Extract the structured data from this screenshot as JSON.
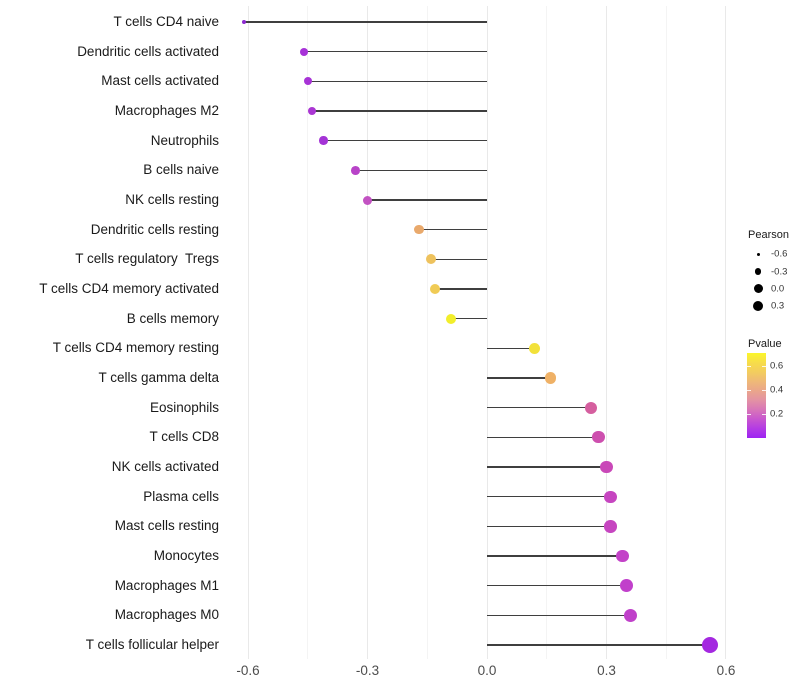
{
  "chart_data": {
    "type": "lollipop",
    "orientation": "horizontal",
    "title": "",
    "xlabel": "",
    "ylabel": "",
    "baseline": 0.0,
    "x_axis": {
      "tick_labels": [
        "-0.6",
        "-0.3",
        "0.0",
        "0.3",
        "0.6"
      ],
      "tick_values": [
        -0.6,
        -0.3,
        0.0,
        0.3,
        0.6
      ],
      "minor_tick_values": [
        -0.45,
        -0.15,
        0.15,
        0.45
      ],
      "xlim": [
        -0.66,
        0.64
      ]
    },
    "rows": [
      {
        "label": "T cells CD4 naive",
        "pearson": -0.61,
        "pvalue_approx": 0.03,
        "pvalue_color": "#8d2bd0",
        "radius": 2.0
      },
      {
        "label": "Dendritic cells activated",
        "pearson": -0.46,
        "pvalue_approx": 0.09,
        "pvalue_color": "#a732d8",
        "radius": 4.0
      },
      {
        "label": "Mast cells activated",
        "pearson": -0.45,
        "pvalue_approx": 0.09,
        "pvalue_color": "#a733d6",
        "radius": 4.0
      },
      {
        "label": "Macrophages M2",
        "pearson": -0.44,
        "pvalue_approx": 0.1,
        "pvalue_color": "#aa36d3",
        "radius": 4.2
      },
      {
        "label": "Neutrophils",
        "pearson": -0.41,
        "pvalue_approx": 0.09,
        "pvalue_color": "#a434d6",
        "radius": 4.2
      },
      {
        "label": "B cells naive",
        "pearson": -0.33,
        "pvalue_approx": 0.15,
        "pvalue_color": "#b843c8",
        "radius": 4.4
      },
      {
        "label": "NK cells resting",
        "pearson": -0.3,
        "pvalue_approx": 0.2,
        "pvalue_color": "#c252c2",
        "radius": 4.5
      },
      {
        "label": "Dendritic cells resting",
        "pearson": -0.17,
        "pvalue_approx": 0.45,
        "pvalue_color": "#e9a96c",
        "radius": 4.8
      },
      {
        "label": "T cells regulatory  Tregs",
        "pearson": -0.14,
        "pvalue_approx": 0.52,
        "pvalue_color": "#eec25d",
        "radius": 5.0
      },
      {
        "label": "T cells CD4 memory activated",
        "pearson": -0.13,
        "pvalue_approx": 0.55,
        "pvalue_color": "#f0cb55",
        "radius": 5.0
      },
      {
        "label": "B cells memory",
        "pearson": -0.09,
        "pvalue_approx": 0.68,
        "pvalue_color": "#f2ee2b",
        "radius": 5.2
      },
      {
        "label": "T cells CD4 memory resting",
        "pearson": 0.12,
        "pvalue_approx": 0.63,
        "pvalue_color": "#f2e13a",
        "radius": 5.5
      },
      {
        "label": "T cells gamma delta",
        "pearson": 0.16,
        "pvalue_approx": 0.48,
        "pvalue_color": "#efb166",
        "radius": 5.6
      },
      {
        "label": "Eosinophils",
        "pearson": 0.26,
        "pvalue_approx": 0.3,
        "pvalue_color": "#d55f9f",
        "radius": 6.0
      },
      {
        "label": "T cells CD8",
        "pearson": 0.28,
        "pvalue_approx": 0.26,
        "pvalue_color": "#cd4fae",
        "radius": 6.1
      },
      {
        "label": "NK cells activated",
        "pearson": 0.3,
        "pvalue_approx": 0.23,
        "pvalue_color": "#c948b8",
        "radius": 6.2
      },
      {
        "label": "Plasma cells",
        "pearson": 0.31,
        "pvalue_approx": 0.22,
        "pvalue_color": "#c645c0",
        "radius": 6.2
      },
      {
        "label": "Mast cells resting",
        "pearson": 0.31,
        "pvalue_approx": 0.22,
        "pvalue_color": "#c645c0",
        "radius": 6.2
      },
      {
        "label": "Monocytes",
        "pearson": 0.34,
        "pvalue_approx": 0.2,
        "pvalue_color": "#c342c8",
        "radius": 6.4
      },
      {
        "label": "Macrophages M1",
        "pearson": 0.35,
        "pvalue_approx": 0.19,
        "pvalue_color": "#c140cb",
        "radius": 6.4
      },
      {
        "label": "Macrophages M0",
        "pearson": 0.36,
        "pvalue_approx": 0.19,
        "pvalue_color": "#c041ca",
        "radius": 6.5
      },
      {
        "label": "T cells follicular helper",
        "pearson": 0.56,
        "pvalue_approx": 0.06,
        "pvalue_color": "#a428e0",
        "radius": 8.3
      }
    ],
    "legend_pearson": {
      "title": "Pearson",
      "dot_color": "#000000",
      "entries": [
        {
          "label": "-0.6",
          "radius": 1.5
        },
        {
          "label": "-0.3",
          "radius": 3.3
        },
        {
          "label": "0.0",
          "radius": 4.5
        },
        {
          "label": "0.3",
          "radius": 5.0
        }
      ]
    },
    "legend_pvalue": {
      "title": "Pvalue",
      "tick_labels": [
        "0.6",
        "0.4",
        "0.2"
      ],
      "tick_values": [
        0.6,
        0.4,
        0.2
      ],
      "range": [
        0,
        0.71
      ],
      "gradient_stops_bottom_to_top": [
        "#9d23f2",
        "#b33be4",
        "#c856cf",
        "#d876b8",
        "#e392a4",
        "#eaa68b",
        "#efb977",
        "#f3cd5e",
        "#f7dd4a",
        "#fbf62a"
      ]
    },
    "stem_color": "#3f3f3f",
    "background_color": "#ffffff"
  }
}
